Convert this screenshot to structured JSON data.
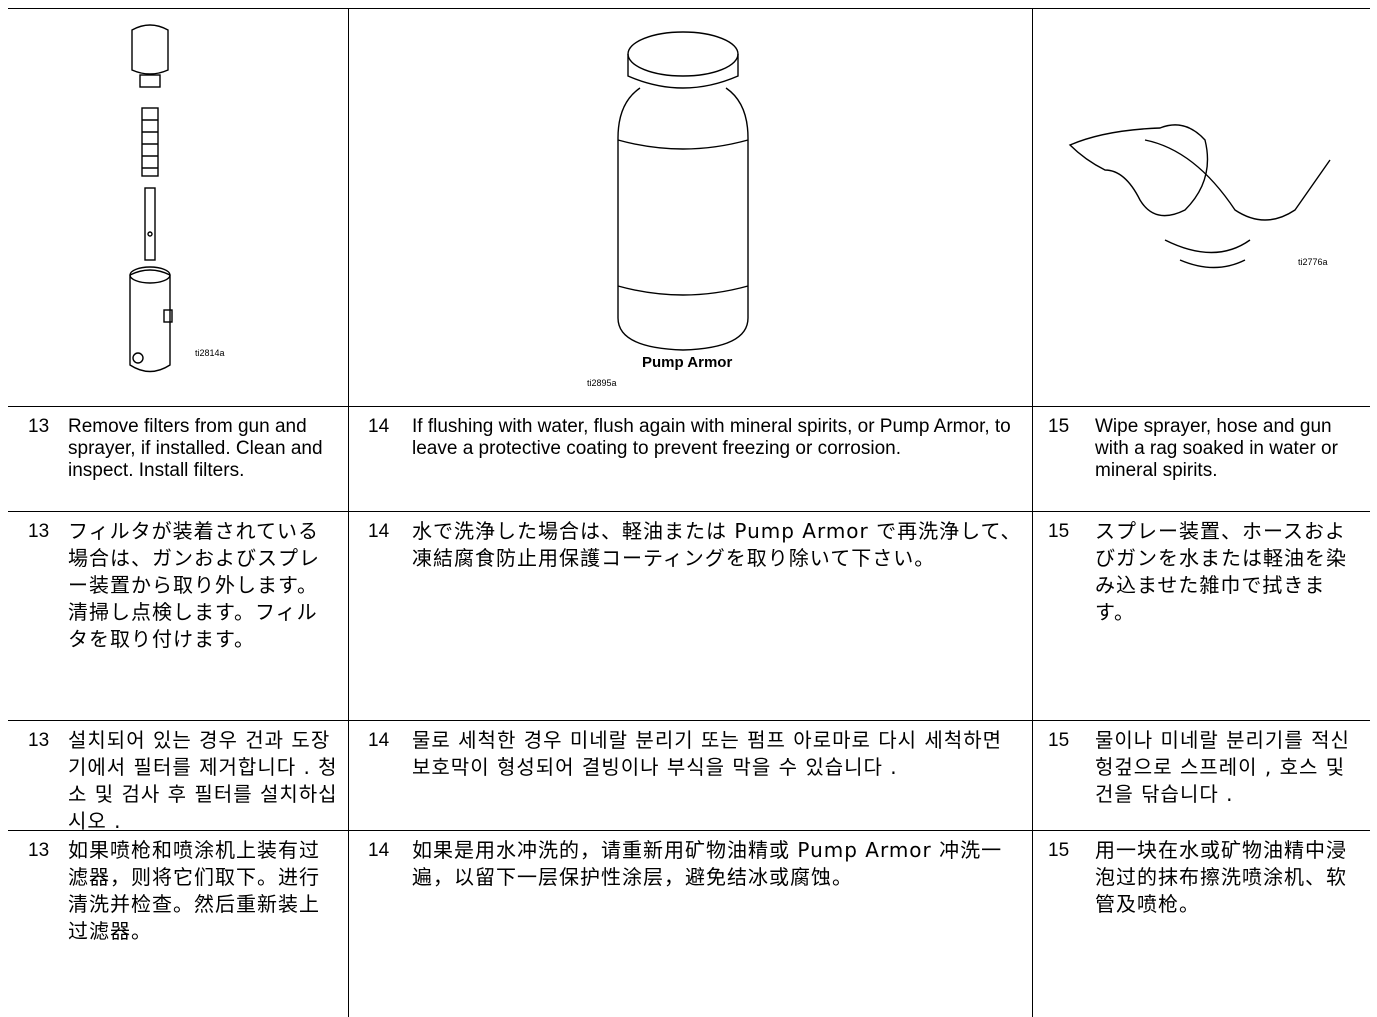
{
  "images": [
    {
      "caption": "ti2814a"
    },
    {
      "label": "Pump Armor",
      "caption": "ti2895a"
    },
    {
      "caption": "ti2776a"
    }
  ],
  "rows": [
    [
      {
        "num": "13",
        "text": "Remove filters from gun and sprayer, if installed. Clean and inspect. Install filters."
      },
      {
        "num": "14",
        "text": "If flushing with water, flush again with mineral spirits, or Pump Armor, to leave a protective coating to prevent freezing or corrosion."
      },
      {
        "num": "15",
        "text": "Wipe sprayer, hose and gun with a rag soaked in water or mineral spirits."
      }
    ],
    [
      {
        "num": "13",
        "text": "フィルタが装着されている場合は、ガンおよびスプレー装置から取り外します。清掃し点検します。フィルタを取り付けます。"
      },
      {
        "num": "14",
        "text": "水で洗浄した場合は、軽油または Pump Armor で再洗浄して、凍結腐食防止用保護コーティングを取り除いて下さい。"
      },
      {
        "num": "15",
        "text": "スプレー装置、ホースおよびガンを水または軽油を染み込ませた雑巾で拭きます。"
      }
    ],
    [
      {
        "num": "13",
        "text": "설치되어 있는 경우 건과 도장기에서 필터를 제거합니다 . 청소 및 검사 후 필터를 설치하십시오 ."
      },
      {
        "num": "14",
        "text": "물로 세척한 경우 미네랄 분리기 또는 펌프 아로마로 다시 세척하면 보호막이 형성되어 결빙이나 부식을 막을 수 있습니다 ."
      },
      {
        "num": "15",
        "text": "물이나 미네랄 분리기를 적신 헝겊으로 스프레이 , 호스 및 건을 닦습니다 ."
      }
    ],
    [
      {
        "num": "13",
        "text": "如果喷枪和喷涂机上装有过滤器，则将它们取下。进行清洗并检查。然后重新装上过滤器。"
      },
      {
        "num": "14",
        "text": "如果是用水冲洗的，请重新用矿物油精或 Pump Armor 冲洗一遍，以留下一层保护性涂层，避免结冰或腐蚀。"
      },
      {
        "num": "15",
        "text": "用一块在水或矿物油精中浸泡过的抹布擦洗喷涂机、软管及喷枪。"
      }
    ]
  ]
}
